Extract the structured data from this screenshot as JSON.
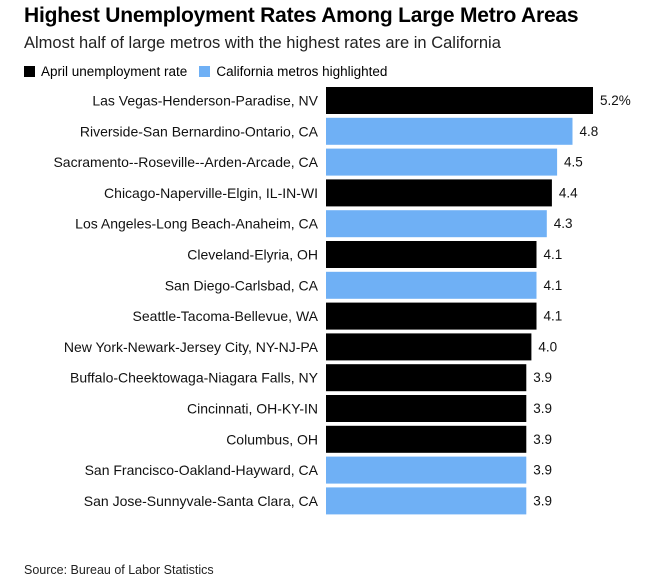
{
  "title": "Highest Unemployment Rates Among Large Metro Areas",
  "subtitle": "Almost half of large metros with the highest rates are in California",
  "legend": {
    "items": [
      {
        "label": "April unemployment rate",
        "color": "#000000"
      },
      {
        "label": "California metros highlighted",
        "color": "#6fb0f5"
      }
    ]
  },
  "source": "Source: Bureau of Labor Statistics",
  "colors": {
    "default": "#000000",
    "highlight": "#6fb0f5"
  },
  "chart_data": {
    "type": "bar",
    "orientation": "horizontal",
    "title": "Highest Unemployment Rates Among Large Metro Areas",
    "xlabel": "",
    "ylabel": "",
    "xlim": [
      0,
      5.2
    ],
    "grid": false,
    "categories": [
      "Las Vegas-Henderson-Paradise, NV",
      "Riverside-San Bernardino-Ontario, CA",
      "Sacramento--Roseville--Arden-Arcade, CA",
      "Chicago-Naperville-Elgin, IL-IN-WI",
      "Los Angeles-Long Beach-Anaheim, CA",
      "Cleveland-Elyria, OH",
      "San Diego-Carlsbad, CA",
      "Seattle-Tacoma-Bellevue, WA",
      "New York-Newark-Jersey City, NY-NJ-PA",
      "Buffalo-Cheektowaga-Niagara Falls, NY",
      "Cincinnati, OH-KY-IN",
      "Columbus, OH",
      "San Francisco-Oakland-Hayward, CA",
      "San Jose-Sunnyvale-Santa Clara, CA"
    ],
    "values": [
      5.2,
      4.8,
      4.5,
      4.4,
      4.3,
      4.1,
      4.1,
      4.1,
      4.0,
      3.9,
      3.9,
      3.9,
      3.9,
      3.9
    ],
    "value_labels": [
      "5.2%",
      "4.8",
      "4.5",
      "4.4",
      "4.3",
      "4.1",
      "4.1",
      "4.1",
      "4.0",
      "3.9",
      "3.9",
      "3.9",
      "3.9",
      "3.9"
    ],
    "highlighted": [
      false,
      true,
      true,
      false,
      true,
      false,
      true,
      false,
      false,
      false,
      false,
      false,
      true,
      true
    ]
  }
}
